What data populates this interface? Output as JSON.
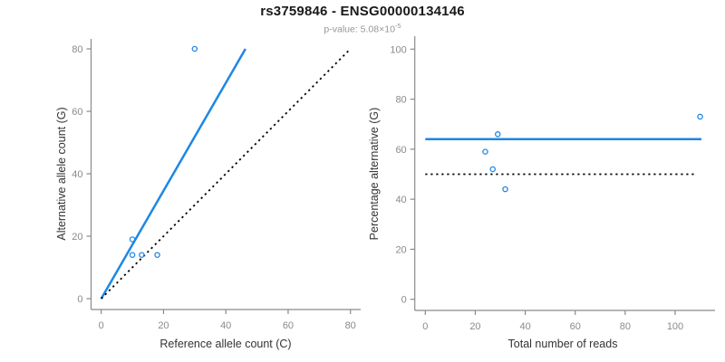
{
  "title": "rs3759846 - ENSG00000134146",
  "subtitle": {
    "prefix": "p-value: 5.08×10",
    "exponent": "-5"
  },
  "colors": {
    "accent_blue": "#1e87e5",
    "dotted_black": "#000000",
    "axis_gray": "#8a8a8a",
    "tick_label_gray": "#8a8a8a",
    "axis_title_dark": "#333333",
    "title_black": "#1a1a1a",
    "subtitle_gray": "#969696",
    "background": "#ffffff"
  },
  "chart_data": [
    {
      "type": "scatter",
      "panel": "left",
      "xlabel": "Reference allele count (C)",
      "ylabel": "Alternative allele count (G)",
      "xlim": [
        0,
        80
      ],
      "ylim": [
        0,
        80
      ],
      "xticks": [
        0,
        20,
        40,
        60,
        80
      ],
      "yticks": [
        0,
        20,
        40,
        60,
        80
      ],
      "grid": false,
      "points": [
        {
          "x": 10,
          "y": 14
        },
        {
          "x": 10,
          "y": 19
        },
        {
          "x": 13,
          "y": 14
        },
        {
          "x": 18,
          "y": 14
        },
        {
          "x": 30,
          "y": 80
        }
      ],
      "lines": [
        {
          "name": "fit-line",
          "style": "solid",
          "color": "#1e87e5",
          "x1": 0,
          "y1": 0,
          "x2": 46.3,
          "y2": 80
        },
        {
          "name": "identity-line",
          "style": "dotted",
          "color": "#000000",
          "x1": 0,
          "y1": 0,
          "x2": 80,
          "y2": 80
        }
      ]
    },
    {
      "type": "scatter",
      "panel": "right",
      "xlabel": "Total number of reads",
      "ylabel": "Percentage alternative (G)",
      "xlim": [
        0,
        110
      ],
      "ylim": [
        0,
        100
      ],
      "xticks": [
        0,
        20,
        40,
        60,
        80,
        100
      ],
      "yticks": [
        0,
        20,
        40,
        60,
        80,
        100
      ],
      "grid": false,
      "points": [
        {
          "x": 24,
          "y": 59
        },
        {
          "x": 27,
          "y": 52
        },
        {
          "x": 29,
          "y": 66
        },
        {
          "x": 32,
          "y": 44
        },
        {
          "x": 110,
          "y": 73
        }
      ],
      "lines": [
        {
          "name": "mean-line",
          "style": "solid",
          "color": "#1e87e5",
          "x1": 0,
          "y1": 64,
          "x2": 110.5,
          "y2": 64
        },
        {
          "name": "fifty-percent-line",
          "style": "dotted",
          "color": "#000000",
          "x1": 0,
          "y1": 50,
          "x2": 108.5,
          "y2": 50
        }
      ]
    }
  ]
}
